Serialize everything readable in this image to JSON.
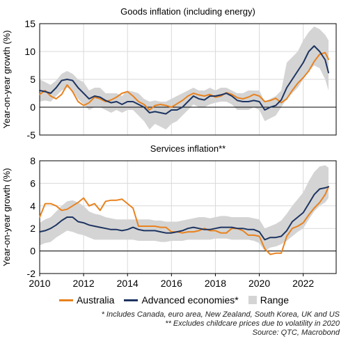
{
  "chart_data": [
    {
      "type": "line",
      "title": "Goods inflation (including energy)",
      "ylabel": "Year-on-year growth (%)",
      "ylim": [
        -5,
        15
      ],
      "yticks": [
        -5,
        0,
        5,
        10,
        15
      ],
      "xlim": [
        2010,
        2023.5
      ],
      "grid": true,
      "series": [
        {
          "name": "Australia",
          "x": [
            2010,
            2010.25,
            2010.5,
            2010.75,
            2011,
            2011.25,
            2011.5,
            2011.75,
            2012,
            2012.25,
            2012.5,
            2012.75,
            2013,
            2013.25,
            2013.5,
            2013.75,
            2014,
            2014.25,
            2014.5,
            2014.75,
            2015,
            2015.25,
            2015.5,
            2015.75,
            2016,
            2016.25,
            2016.5,
            2016.75,
            2017,
            2017.25,
            2017.5,
            2017.75,
            2018,
            2018.25,
            2018.5,
            2018.75,
            2019,
            2019.25,
            2019.5,
            2019.75,
            2020,
            2020.25,
            2020.5,
            2020.75,
            2021,
            2021.25,
            2021.5,
            2021.75,
            2022,
            2022.25,
            2022.5,
            2022.75,
            2023,
            2023.15
          ],
          "values": [
            2.3,
            3.0,
            2.0,
            1.5,
            2.3,
            4.0,
            2.8,
            1.0,
            0.3,
            0.8,
            1.8,
            1.5,
            1.0,
            1.3,
            1.8,
            2.5,
            2.8,
            2.0,
            1.0,
            0.5,
            -0.5,
            0.3,
            0.5,
            0.3,
            0.0,
            0.6,
            1.2,
            2.0,
            2.5,
            2.2,
            2.0,
            2.3,
            1.8,
            2.0,
            2.6,
            2.3,
            1.7,
            1.5,
            1.8,
            2.3,
            2.0,
            1.0,
            1.2,
            1.6,
            0.8,
            1.5,
            3.0,
            4.3,
            5.3,
            6.5,
            8.2,
            9.5,
            9.8,
            8.6
          ]
        },
        {
          "name": "Advanced economies*",
          "x": [
            2010,
            2010.25,
            2010.5,
            2010.75,
            2011,
            2011.25,
            2011.5,
            2011.75,
            2012,
            2012.25,
            2012.5,
            2012.75,
            2013,
            2013.25,
            2013.5,
            2013.75,
            2014,
            2014.25,
            2014.5,
            2014.75,
            2015,
            2015.25,
            2015.5,
            2015.75,
            2016,
            2016.25,
            2016.5,
            2016.75,
            2017,
            2017.25,
            2017.5,
            2017.75,
            2018,
            2018.25,
            2018.5,
            2018.75,
            2019,
            2019.25,
            2019.5,
            2019.75,
            2020,
            2020.25,
            2020.5,
            2020.75,
            2021,
            2021.25,
            2021.5,
            2021.75,
            2022,
            2022.25,
            2022.5,
            2022.75,
            2023,
            2023.15
          ],
          "values": [
            3.0,
            2.8,
            2.5,
            3.5,
            4.8,
            5.0,
            4.8,
            3.5,
            2.5,
            1.5,
            2.0,
            1.8,
            1.2,
            0.8,
            1.0,
            0.5,
            1.0,
            1.0,
            0.5,
            0.0,
            -1.0,
            -0.8,
            -1.0,
            -1.2,
            -0.5,
            -0.5,
            0.0,
            1.0,
            2.0,
            1.5,
            1.3,
            2.0,
            2.0,
            2.2,
            2.5,
            2.0,
            1.2,
            1.0,
            1.0,
            1.2,
            1.0,
            -0.5,
            0.0,
            0.3,
            1.3,
            3.5,
            5.0,
            6.5,
            8.0,
            10.0,
            11.0,
            10.0,
            8.5,
            6.2
          ]
        },
        {
          "name": "Range",
          "x": [
            2010,
            2010.25,
            2010.5,
            2010.75,
            2011,
            2011.25,
            2011.5,
            2011.75,
            2012,
            2012.25,
            2012.5,
            2012.75,
            2013,
            2013.25,
            2013.5,
            2013.75,
            2014,
            2014.25,
            2014.5,
            2014.75,
            2015,
            2015.25,
            2015.5,
            2015.75,
            2016,
            2016.25,
            2016.5,
            2016.75,
            2017,
            2017.25,
            2017.5,
            2017.75,
            2018,
            2018.25,
            2018.5,
            2018.75,
            2019,
            2019.25,
            2019.5,
            2019.75,
            2020,
            2020.25,
            2020.5,
            2020.75,
            2021,
            2021.25,
            2021.5,
            2021.75,
            2022,
            2022.25,
            2022.5,
            2022.75,
            2023,
            2023.15
          ],
          "low": [
            1.0,
            1.2,
            1.0,
            2.0,
            3.0,
            3.5,
            3.0,
            1.5,
            0.5,
            -0.5,
            0.0,
            0.0,
            -0.5,
            -1.0,
            -0.5,
            -1.0,
            -0.5,
            -0.5,
            -1.5,
            -2.5,
            -4.0,
            -3.0,
            -3.5,
            -4.0,
            -3.0,
            -2.5,
            -1.5,
            -0.5,
            0.5,
            0.0,
            0.0,
            0.5,
            0.8,
            1.0,
            1.0,
            0.5,
            -0.5,
            -0.5,
            -0.5,
            0.0,
            -0.5,
            -2.5,
            -2.0,
            -1.5,
            0.0,
            1.5,
            2.5,
            3.5,
            5.0,
            6.5,
            7.5,
            7.0,
            5.0,
            3.0
          ],
          "high": [
            5.0,
            4.5,
            4.0,
            4.8,
            6.0,
            6.5,
            6.0,
            5.0,
            4.5,
            3.0,
            3.5,
            3.5,
            2.5,
            2.5,
            2.5,
            2.0,
            3.0,
            2.8,
            2.5,
            1.5,
            1.0,
            1.2,
            1.0,
            1.0,
            1.5,
            2.0,
            2.5,
            3.0,
            3.5,
            3.0,
            3.0,
            3.5,
            3.0,
            3.5,
            3.5,
            3.0,
            2.5,
            2.5,
            3.0,
            3.0,
            3.0,
            1.0,
            1.5,
            2.0,
            3.0,
            8.0,
            9.0,
            10.0,
            12.0,
            13.5,
            14.5,
            14.0,
            13.0,
            12.0
          ]
        }
      ]
    },
    {
      "type": "line",
      "title": "Services inflation**",
      "ylabel": "Year-on-year growth (%)",
      "ylim": [
        -2,
        8
      ],
      "yticks": [
        -2,
        0,
        2,
        4,
        6,
        8
      ],
      "xlim": [
        2010,
        2023.5
      ],
      "xticks": [
        2010,
        2012,
        2014,
        2016,
        2018,
        2020,
        2022
      ],
      "grid": true,
      "series": [
        {
          "name": "Australia",
          "x": [
            2010,
            2010.25,
            2010.5,
            2010.75,
            2011,
            2011.25,
            2011.5,
            2011.75,
            2012,
            2012.25,
            2012.5,
            2012.75,
            2013,
            2013.25,
            2013.5,
            2013.75,
            2014,
            2014.25,
            2014.5,
            2014.75,
            2015,
            2015.25,
            2015.5,
            2015.75,
            2016,
            2016.25,
            2016.5,
            2016.75,
            2017,
            2017.25,
            2017.5,
            2017.75,
            2018,
            2018.25,
            2018.5,
            2018.75,
            2019,
            2019.25,
            2019.5,
            2019.75,
            2020,
            2020.25,
            2020.5,
            2020.75,
            2021,
            2021.25,
            2021.5,
            2021.75,
            2022,
            2022.25,
            2022.5,
            2022.75,
            2023,
            2023.15
          ],
          "values": [
            3.0,
            4.2,
            4.2,
            4.0,
            3.6,
            3.7,
            4.0,
            4.3,
            4.7,
            4.0,
            4.2,
            3.6,
            4.4,
            4.5,
            4.5,
            4.6,
            4.2,
            3.8,
            2.2,
            2.2,
            2.2,
            2.2,
            2.1,
            2.1,
            1.7,
            1.7,
            1.6,
            1.7,
            1.7,
            1.8,
            2.0,
            1.8,
            1.8,
            1.6,
            1.6,
            2.0,
            2.0,
            1.8,
            1.4,
            1.4,
            1.3,
            0.2,
            -0.3,
            -0.2,
            -0.2,
            1.3,
            2.0,
            2.2,
            2.5,
            3.2,
            3.8,
            4.3,
            5.0,
            5.7
          ]
        },
        {
          "name": "Advanced economies*",
          "x": [
            2010,
            2010.25,
            2010.5,
            2010.75,
            2011,
            2011.25,
            2011.5,
            2011.75,
            2012,
            2012.25,
            2012.5,
            2012.75,
            2013,
            2013.25,
            2013.5,
            2013.75,
            2014,
            2014.25,
            2014.5,
            2014.75,
            2015,
            2015.25,
            2015.5,
            2015.75,
            2016,
            2016.25,
            2016.5,
            2016.75,
            2017,
            2017.25,
            2017.5,
            2017.75,
            2018,
            2018.25,
            2018.5,
            2018.75,
            2019,
            2019.25,
            2019.5,
            2019.75,
            2020,
            2020.25,
            2020.5,
            2020.75,
            2021,
            2021.25,
            2021.5,
            2021.75,
            2022,
            2022.25,
            2022.5,
            2022.75,
            2023,
            2023.15
          ],
          "values": [
            1.7,
            1.8,
            2.0,
            2.3,
            2.7,
            3.0,
            3.0,
            2.6,
            2.5,
            2.3,
            2.2,
            2.1,
            2.0,
            1.9,
            1.9,
            1.8,
            1.9,
            2.1,
            1.9,
            1.8,
            1.8,
            1.8,
            1.7,
            1.6,
            1.6,
            1.7,
            1.8,
            2.0,
            2.1,
            2.0,
            1.9,
            1.9,
            2.0,
            2.1,
            2.1,
            2.1,
            2.0,
            2.0,
            1.9,
            1.9,
            1.7,
            1.0,
            1.2,
            1.2,
            1.3,
            1.8,
            2.6,
            3.0,
            3.4,
            4.2,
            5.0,
            5.5,
            5.6,
            5.7
          ]
        },
        {
          "name": "Range",
          "x": [
            2010,
            2010.25,
            2010.5,
            2010.75,
            2011,
            2011.25,
            2011.5,
            2011.75,
            2012,
            2012.25,
            2012.5,
            2012.75,
            2013,
            2013.25,
            2013.5,
            2013.75,
            2014,
            2014.25,
            2014.5,
            2014.75,
            2015,
            2015.25,
            2015.5,
            2015.75,
            2016,
            2016.25,
            2016.5,
            2016.75,
            2017,
            2017.25,
            2017.5,
            2017.75,
            2018,
            2018.25,
            2018.5,
            2018.75,
            2019,
            2019.25,
            2019.5,
            2019.75,
            2020,
            2020.25,
            2020.5,
            2020.75,
            2021,
            2021.25,
            2021.5,
            2021.75,
            2022,
            2022.25,
            2022.5,
            2022.75,
            2023,
            2023.15
          ],
          "low": [
            0.5,
            0.7,
            0.8,
            1.2,
            1.5,
            1.8,
            1.7,
            1.5,
            1.4,
            1.2,
            1.0,
            1.0,
            1.0,
            1.0,
            1.0,
            1.0,
            1.0,
            1.0,
            0.9,
            0.9,
            0.9,
            0.9,
            0.8,
            0.8,
            0.9,
            0.9,
            0.9,
            1.0,
            1.0,
            1.0,
            1.0,
            1.0,
            1.1,
            1.1,
            1.1,
            1.0,
            1.0,
            1.0,
            1.0,
            0.9,
            0.7,
            0.0,
            0.3,
            0.4,
            0.6,
            0.9,
            1.3,
            1.7,
            2.0,
            2.8,
            3.5,
            4.0,
            4.3,
            4.7
          ],
          "high": [
            2.5,
            2.8,
            3.0,
            3.5,
            4.0,
            4.4,
            4.5,
            4.3,
            4.0,
            3.5,
            3.3,
            3.2,
            3.0,
            2.9,
            2.8,
            2.8,
            2.8,
            2.8,
            2.8,
            2.8,
            2.8,
            2.7,
            2.7,
            2.6,
            2.6,
            2.6,
            2.7,
            2.8,
            2.9,
            3.0,
            3.0,
            2.9,
            3.0,
            3.1,
            3.1,
            3.0,
            3.0,
            3.0,
            3.0,
            2.9,
            2.8,
            2.0,
            2.2,
            2.4,
            2.7,
            3.3,
            4.0,
            4.6,
            5.2,
            6.2,
            7.0,
            7.5,
            7.6,
            7.4
          ]
        }
      ]
    }
  ],
  "legend": {
    "items": [
      {
        "label": "Australia",
        "color": "#e8821e",
        "kind": "line"
      },
      {
        "label": "Advanced economies*",
        "color": "#1d3461",
        "kind": "line"
      },
      {
        "label": "Range",
        "color": "#d4d4d4",
        "kind": "box"
      }
    ]
  },
  "notes": [
    "*  Includes Canada, euro area, New Zealand, South Korea, UK and US",
    "** Excludes childcare prices due to volatility in 2020",
    "Source: QTC, Macrobond"
  ],
  "colors": {
    "australia": "#e8821e",
    "advanced": "#1d3461",
    "range": "#d4d4d4",
    "grid": "#d9d9d9"
  }
}
